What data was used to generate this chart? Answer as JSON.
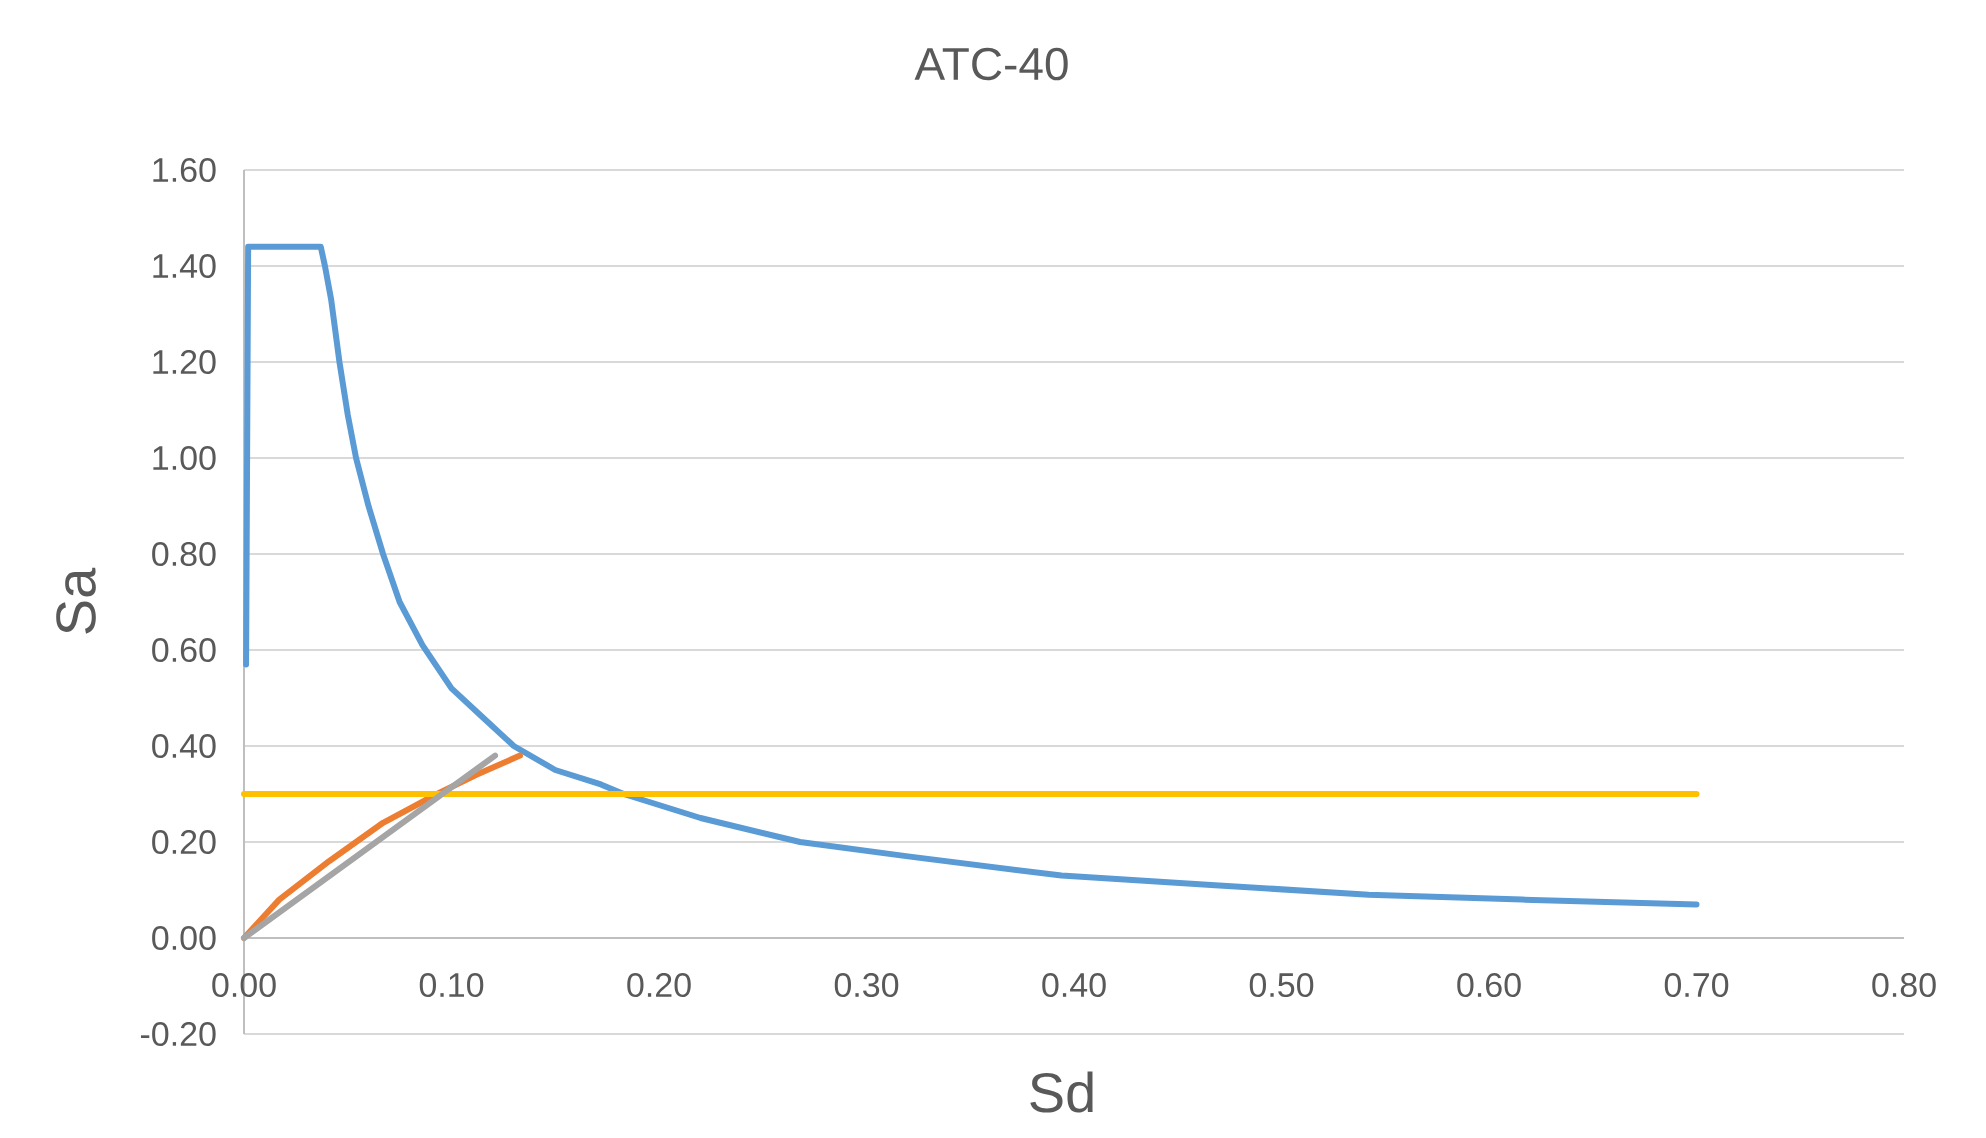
{
  "chart_data": {
    "type": "line",
    "title": "ATC-40",
    "xlabel": "Sd",
    "ylabel": "Sa",
    "xlim": [
      0,
      0.8
    ],
    "ylim": [
      -0.2,
      1.6
    ],
    "xticks": [
      {
        "value": 0,
        "label": "0.00"
      },
      {
        "value": 0.1,
        "label": "0.10"
      },
      {
        "value": 0.2,
        "label": "0.20"
      },
      {
        "value": 0.3,
        "label": "0.30"
      },
      {
        "value": 0.4,
        "label": "0.40"
      },
      {
        "value": 0.5,
        "label": "0.50"
      },
      {
        "value": 0.6,
        "label": "0.60"
      },
      {
        "value": 0.7,
        "label": "0.70"
      },
      {
        "value": 0.8,
        "label": "0.80"
      }
    ],
    "yticks": [
      {
        "value": -0.2,
        "label": "-0.20"
      },
      {
        "value": 0,
        "label": "0.00"
      },
      {
        "value": 0.2,
        "label": "0.20"
      },
      {
        "value": 0.4,
        "label": "0.40"
      },
      {
        "value": 0.6,
        "label": "0.60"
      },
      {
        "value": 0.8,
        "label": "0.80"
      },
      {
        "value": 1.0,
        "label": "1.00"
      },
      {
        "value": 1.2,
        "label": "1.20"
      },
      {
        "value": 1.4,
        "label": "1.40"
      },
      {
        "value": 1.6,
        "label": "1.60"
      }
    ],
    "grid": "y",
    "line_style": "solid",
    "series": [
      {
        "color": "#5b9bd5",
        "x": [
          0.001,
          0.002,
          0.037,
          0.039,
          0.042,
          0.046,
          0.05,
          0.054,
          0.06,
          0.067,
          0.075,
          0.086,
          0.1,
          0.115,
          0.13,
          0.15,
          0.172,
          0.183,
          0.22,
          0.268,
          0.32,
          0.394,
          0.468,
          0.542,
          0.616,
          0.7
        ],
        "values": [
          0.57,
          1.44,
          1.44,
          1.4,
          1.33,
          1.2,
          1.09,
          1.0,
          0.9,
          0.8,
          0.7,
          0.61,
          0.52,
          0.46,
          0.4,
          0.35,
          0.32,
          0.3,
          0.25,
          0.2,
          0.17,
          0.13,
          0.11,
          0.09,
          0.08,
          0.07
        ]
      },
      {
        "color": "#ed7d31",
        "x": [
          0,
          0.017,
          0.041,
          0.067,
          0.093,
          0.112,
          0.133
        ],
        "values": [
          0,
          0.08,
          0.16,
          0.24,
          0.3,
          0.34,
          0.38
        ]
      },
      {
        "color": "#ffc000",
        "x": [
          0,
          0.7
        ],
        "values": [
          0.3,
          0.3
        ]
      },
      {
        "color": "#a5a5a5",
        "x": [
          0,
          0.121
        ],
        "values": [
          0,
          0.38
        ]
      }
    ]
  }
}
